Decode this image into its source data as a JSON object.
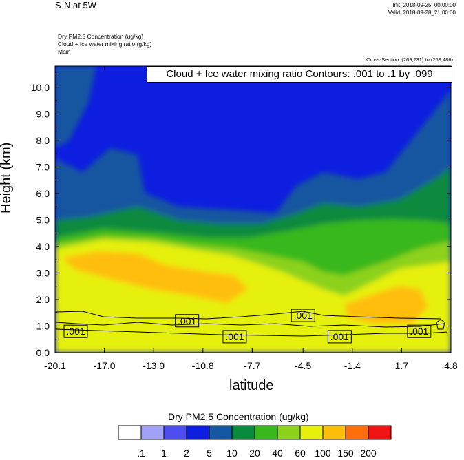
{
  "header": {
    "main_title": "S-N at 5W",
    "init": "Init: 2018-09-25_00:00:00",
    "valid": "Valid: 2018-09-28_21:00:00",
    "field_line1": "Dry PM2.5 Concentration   (ug/kg)",
    "field_line2": "Cloud + Ice water mixing ratio   (g/kg)",
    "field_line3": "Main",
    "cross_section": "Cross-Section: (269,231) to (269,486)",
    "contour_info": "Cloud + Ice water mixing ratio Contours: .001 to .1 by .099"
  },
  "chart_data": {
    "type": "heatmap",
    "title": "S-N at 5W",
    "xlabel": "latitude",
    "ylabel": "Height (km)",
    "xlim": [
      -20.1,
      4.8
    ],
    "ylim": [
      0.0,
      10.8
    ],
    "x_ticks": [
      "-20.1",
      "-17.0",
      "-13.9",
      "-10.8",
      "-7.7",
      "-4.5",
      "-1.4",
      "1.7",
      "4.8"
    ],
    "y_ticks": [
      "0.0",
      "1.0",
      "2.0",
      "3.0",
      "4.0",
      "5.0",
      "6.0",
      "7.0",
      "8.0",
      "9.0",
      "10.0"
    ],
    "colorbar": {
      "title": "Dry PM2.5 Concentration  (ug/kg)",
      "levels": [
        ".1",
        "1",
        "2",
        "5",
        "10",
        "20",
        "40",
        "60",
        "100",
        "150",
        "200"
      ],
      "colors": [
        "#ffffff",
        "#a0a0f6",
        "#4e4ef0",
        "#0e1ee0",
        "#1456a0",
        "#0a8a3c",
        "#38b81a",
        "#8cd21c",
        "#e6f00a",
        "#ffbe0a",
        "#ff6e0a",
        "#f01414"
      ]
    },
    "contour_labels": [
      ".001",
      ".001",
      ".001",
      ".001",
      ".001",
      ".001"
    ]
  }
}
